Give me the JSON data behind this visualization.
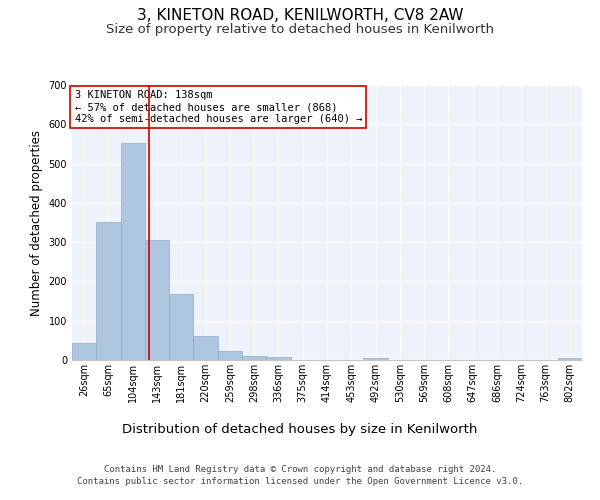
{
  "title": "3, KINETON ROAD, KENILWORTH, CV8 2AW",
  "subtitle": "Size of property relative to detached houses in Kenilworth",
  "xlabel": "Distribution of detached houses by size in Kenilworth",
  "ylabel": "Number of detached properties",
  "categories": [
    "26sqm",
    "65sqm",
    "104sqm",
    "143sqm",
    "181sqm",
    "220sqm",
    "259sqm",
    "298sqm",
    "336sqm",
    "375sqm",
    "414sqm",
    "453sqm",
    "492sqm",
    "530sqm",
    "569sqm",
    "608sqm",
    "647sqm",
    "686sqm",
    "724sqm",
    "763sqm",
    "802sqm"
  ],
  "values": [
    43,
    350,
    553,
    305,
    168,
    61,
    23,
    11,
    8,
    0,
    0,
    0,
    6,
    0,
    0,
    0,
    0,
    0,
    0,
    0,
    6
  ],
  "bar_color": "#aec6e0",
  "bar_edgecolor": "#8aafc8",
  "background_color": "#eef2fb",
  "grid_color": "#ffffff",
  "ylim": [
    0,
    700
  ],
  "yticks": [
    0,
    100,
    200,
    300,
    400,
    500,
    600,
    700
  ],
  "property_line_x": 2.69,
  "annotation_text": "3 KINETON ROAD: 138sqm\n← 57% of detached houses are smaller (868)\n42% of semi-detached houses are larger (640) →",
  "footer_line1": "Contains HM Land Registry data © Crown copyright and database right 2024.",
  "footer_line2": "Contains public sector information licensed under the Open Government Licence v3.0.",
  "title_fontsize": 11,
  "subtitle_fontsize": 9.5,
  "xlabel_fontsize": 9.5,
  "ylabel_fontsize": 8.5,
  "tick_fontsize": 7,
  "annotation_fontsize": 7.5,
  "footer_fontsize": 6.5
}
